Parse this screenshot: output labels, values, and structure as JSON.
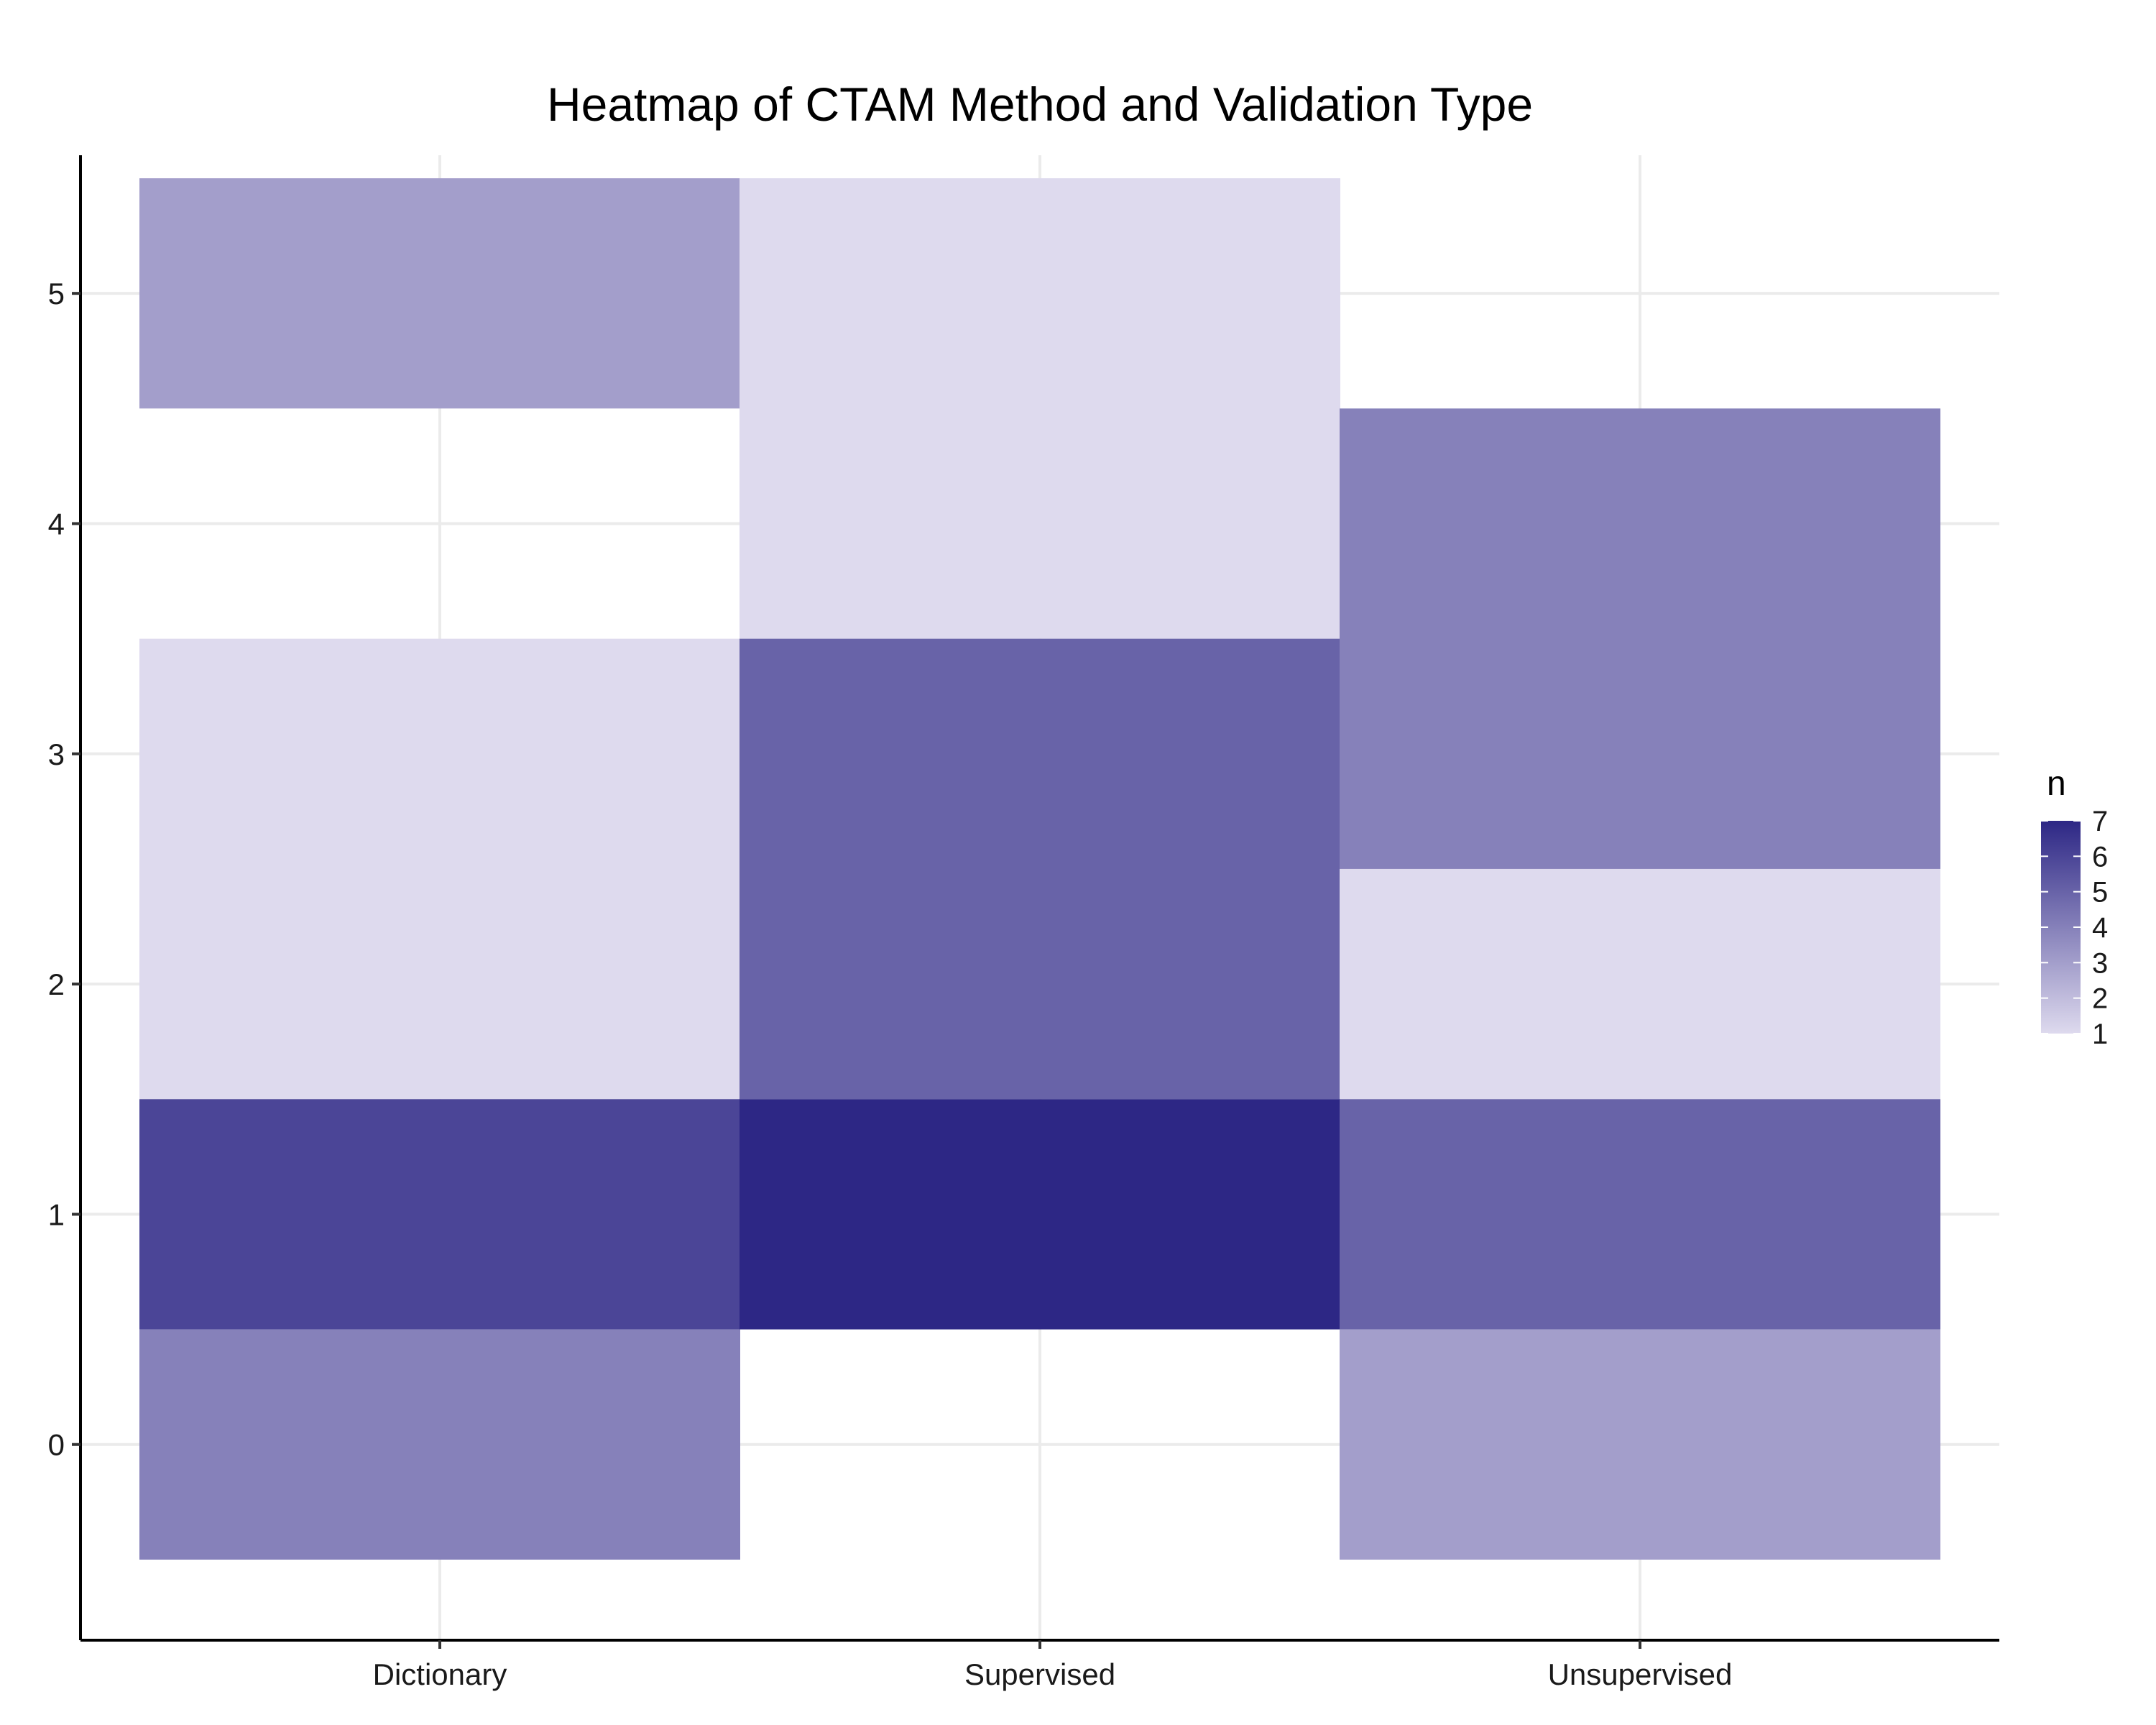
{
  "chart_data": {
    "type": "heatmap",
    "title": "Heatmap of CTAM Method and Validation Type",
    "xlabel": "",
    "ylabel": "",
    "x_categories": [
      "Dictionary",
      "Supervised",
      "Unsupervised"
    ],
    "y_ticks": [
      0,
      1,
      2,
      3,
      4,
      5
    ],
    "y_range": [
      -0.5,
      5.5
    ],
    "cells": [
      {
        "x": "Dictionary",
        "y_from": 4.5,
        "y_to": 5.5,
        "n": 3
      },
      {
        "x": "Dictionary",
        "y_from": 1.5,
        "y_to": 3.5,
        "n": 1
      },
      {
        "x": "Dictionary",
        "y_from": 0.5,
        "y_to": 1.5,
        "n": 6
      },
      {
        "x": "Dictionary",
        "y_from": -0.5,
        "y_to": 0.5,
        "n": 4
      },
      {
        "x": "Supervised",
        "y_from": 3.5,
        "y_to": 5.5,
        "n": 1
      },
      {
        "x": "Supervised",
        "y_from": 1.5,
        "y_to": 3.5,
        "n": 5
      },
      {
        "x": "Supervised",
        "y_from": 0.5,
        "y_to": 1.5,
        "n": 7
      },
      {
        "x": "Unsupervised",
        "y_from": 2.5,
        "y_to": 4.5,
        "n": 4
      },
      {
        "x": "Unsupervised",
        "y_from": 1.5,
        "y_to": 2.5,
        "n": 1
      },
      {
        "x": "Unsupervised",
        "y_from": 0.5,
        "y_to": 1.5,
        "n": 5
      },
      {
        "x": "Unsupervised",
        "y_from": -0.5,
        "y_to": 0.5,
        "n": 3
      }
    ],
    "legend": {
      "title": "n",
      "placement": "right",
      "ticks": [
        1,
        2,
        3,
        4,
        5,
        6,
        7
      ],
      "range": [
        1,
        7
      ],
      "color_low": "#dedaee",
      "color_high": "#2d2785"
    },
    "grid": true
  }
}
